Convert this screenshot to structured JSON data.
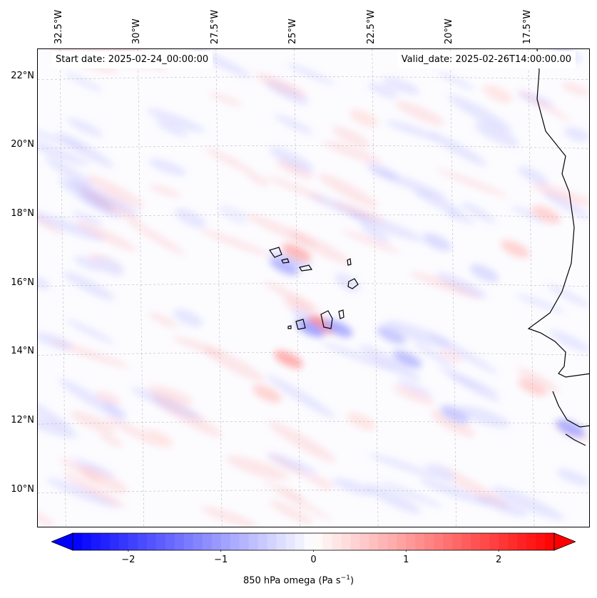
{
  "header": {
    "start_date": "Start date: 2025-02-24_00:00:00",
    "valid_date": "Valid_date: 2025-02-26T14:00:00.00"
  },
  "axes": {
    "lon_labels": [
      "32.5°W",
      "30°W",
      "27.5°W",
      "25°W",
      "22.5°W",
      "20°W",
      "17.5°W"
    ],
    "lat_labels": [
      "22°N",
      "20°N",
      "18°N",
      "16°N",
      "14°N",
      "12°N",
      "10°N"
    ],
    "lon_values": [
      -32.5,
      -30,
      -27.5,
      -25,
      -22.5,
      -20,
      -17.5
    ],
    "lat_values": [
      22,
      20,
      18,
      16,
      14,
      12,
      10
    ],
    "lon_range": [
      -33.3,
      -15.6
    ],
    "lat_range": [
      8.9,
      22.8
    ],
    "gridlines": true
  },
  "colorbar": {
    "label": "850 hPa omega (Pa s",
    "label_sup": "−1",
    "label_end": ")",
    "ticks": [
      "−2",
      "−1",
      "0",
      "1",
      "2"
    ],
    "tick_values": [
      -2,
      -1,
      0,
      1,
      2
    ],
    "range": [
      -2.6,
      2.6
    ],
    "extend": "both",
    "colormap": "bwr",
    "color_low": "#0000ff",
    "color_mid": "#ffffff",
    "color_high": "#ff0000"
  },
  "field": {
    "variable": "850 hPa omega",
    "features": [
      {
        "lon": -24.2,
        "lat": 14.8,
        "value": 1.2
      },
      {
        "lon": -24.6,
        "lat": 14.7,
        "value": -1.0
      },
      {
        "lon": -23.7,
        "lat": 14.7,
        "value": -0.9
      },
      {
        "lon": -25.3,
        "lat": 13.8,
        "value": 0.9
      },
      {
        "lon": -25.0,
        "lat": 16.9,
        "value": 0.8
      },
      {
        "lon": -25.4,
        "lat": 16.5,
        "value": -0.8
      },
      {
        "lon": -22.0,
        "lat": 14.5,
        "value": -0.6
      },
      {
        "lon": -21.5,
        "lat": 13.8,
        "value": -0.7
      },
      {
        "lon": -20.0,
        "lat": 12.2,
        "value": -0.6
      },
      {
        "lon": -16.3,
        "lat": 11.8,
        "value": -0.9
      },
      {
        "lon": -17.0,
        "lat": 18.0,
        "value": 0.5
      },
      {
        "lon": -18.0,
        "lat": 17.0,
        "value": 0.5
      },
      {
        "lon": -20.5,
        "lat": 17.2,
        "value": -0.4
      },
      {
        "lon": -19.0,
        "lat": 16.3,
        "value": -0.4
      },
      {
        "lon": -26.0,
        "lat": 12.8,
        "value": 0.5
      },
      {
        "lon": -28.5,
        "lat": 15.0,
        "value": -0.3
      },
      {
        "lon": -31.0,
        "lat": 16.5,
        "value": -0.3
      },
      {
        "lon": -22.8,
        "lat": 20.8,
        "value": 0.3
      },
      {
        "lon": -18.5,
        "lat": 21.5,
        "value": 0.3
      },
      {
        "lon": -27.0,
        "lat": 18.0,
        "value": -0.2
      },
      {
        "lon": -29.5,
        "lat": 11.5,
        "value": 0.3
      },
      {
        "lon": -23.0,
        "lat": 12.0,
        "value": 0.3
      },
      {
        "lon": -17.5,
        "lat": 13.0,
        "value": 0.5
      },
      {
        "lon": -20.5,
        "lat": 10.5,
        "value": -0.3
      }
    ]
  }
}
